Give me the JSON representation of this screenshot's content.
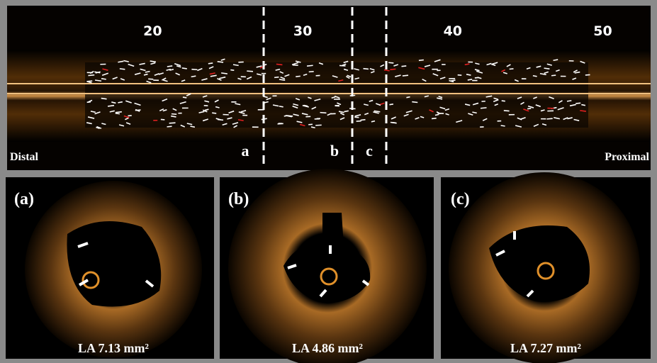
{
  "top_panel": {
    "scale_labels": [
      20,
      30,
      40,
      50
    ],
    "left_label": "Distal",
    "right_label": "Proximal",
    "section_markers": [
      "a",
      "b",
      "c"
    ]
  },
  "cross_sections": [
    {
      "label": "(a)",
      "lumen_area": "LA 7.13 mm²"
    },
    {
      "label": "(b)",
      "lumen_area": "LA 4.86 mm²"
    },
    {
      "label": "(c)",
      "lumen_area": "LA 7.27 mm²"
    }
  ]
}
